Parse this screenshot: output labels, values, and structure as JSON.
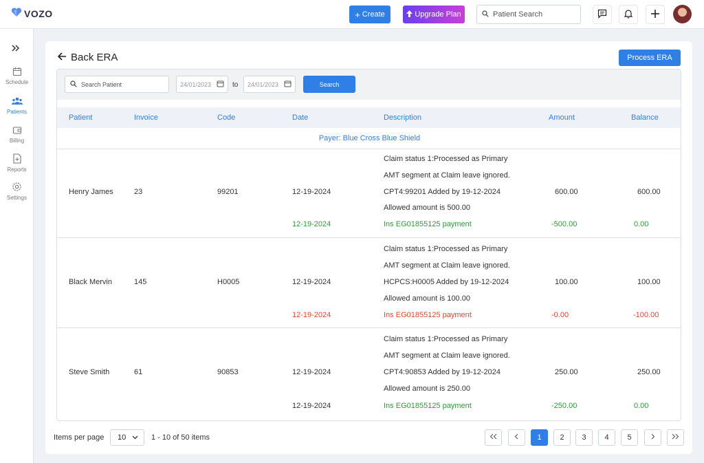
{
  "app": {
    "name": "VOZO",
    "brand_color": "#2f7fe6"
  },
  "header": {
    "create_label": "Create",
    "upgrade_label": "Upgrade Plan",
    "search_placeholder": "Patient Search"
  },
  "sidebar": {
    "items": [
      {
        "label": "Schedule",
        "icon": "calendar-icon"
      },
      {
        "label": "Patients",
        "icon": "patients-icon",
        "active": true
      },
      {
        "label": "Billing",
        "icon": "wallet-icon"
      },
      {
        "label": "Reports",
        "icon": "report-icon"
      },
      {
        "label": "Settings",
        "icon": "gear-icon"
      }
    ]
  },
  "page": {
    "title": "Back ERA",
    "process_label": "Process ERA"
  },
  "filters": {
    "search_placeholder": "Search Patient",
    "from_date": "24/01/2023",
    "to_label": "to",
    "to_date": "24/01/2023",
    "search_label": "Search"
  },
  "table": {
    "headers": [
      "Patient",
      "Invoice",
      "Code",
      "Date",
      "Description",
      "Amount",
      "Balance"
    ],
    "payer": "Payer: Blue Cross Blue Shield",
    "rows": [
      {
        "patient": "Henry James",
        "invoice": "23",
        "code": "99201",
        "date": "12-19-2024",
        "desc": [
          "Claim status 1:Processed as Primary",
          "AMT segment at Claim leave ignored.",
          "CPT4:99201 Added by 19-12-2024",
          "Allowed amount is 500.00"
        ],
        "amount": "600.00",
        "balance": "600.00",
        "payment": {
          "date": "12-19-2024",
          "desc": "Ins EG01855125 payment",
          "amount": "-500.00",
          "balance": "0.00",
          "status": "green",
          "date_colored": true
        }
      },
      {
        "patient": "Black Mervin",
        "invoice": "145",
        "code": "H0005",
        "date": "12-19-2024",
        "desc": [
          "Claim status 1:Processed as Primary",
          "AMT segment at Claim leave ignored.",
          "HCPCS:H0005 Added by 19-12-2024",
          "Allowed amount is 100.00"
        ],
        "amount": "100.00",
        "balance": "100.00",
        "payment": {
          "date": "12-19-2024",
          "desc": "Ins EG01855125 payment",
          "amount": "-0.00",
          "balance": "-100.00",
          "status": "red",
          "date_colored": true
        }
      },
      {
        "patient": "Steve Smith",
        "invoice": "61",
        "code": "90853",
        "date": "12-19-2024",
        "desc": [
          "Claim status 1:Processed as Primary",
          "AMT segment at Claim leave ignored.",
          "CPT4:90853 Added by 19-12-2024",
          "Allowed amount is 250.00"
        ],
        "amount": "250.00",
        "balance": "250.00",
        "payment": {
          "date": "12-19-2024",
          "desc": "Ins EG01855125 payment",
          "amount": "-250.00",
          "balance": "0.00",
          "status": "green",
          "date_colored": false
        }
      }
    ]
  },
  "pagination": {
    "items_per_page_label": "Items per page",
    "items_per_page": "10",
    "range_text": "1 - 10 of 50 items",
    "pages": [
      "1",
      "2",
      "3",
      "4",
      "5"
    ],
    "current": "1"
  }
}
